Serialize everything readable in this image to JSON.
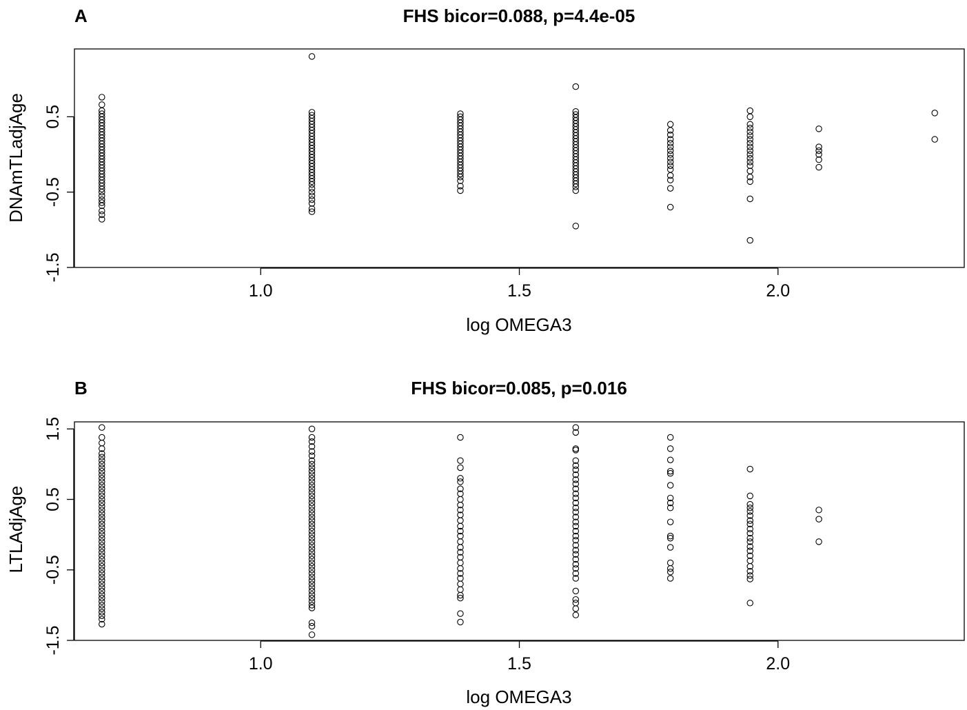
{
  "chart_data": [
    {
      "type": "scatter",
      "panel_label": "A",
      "title": "FHS bicor=0.088, p=4.4e-05",
      "xlabel": "log OMEGA3",
      "ylabel": "DNAmTLadjAge",
      "xlim": [
        0.64,
        2.36
      ],
      "ylim": [
        -1.5,
        1.4
      ],
      "xticks": [
        "1.0",
        "1.5",
        "2.0"
      ],
      "yticks": [
        "-1.5",
        "-0.5",
        "0.5"
      ],
      "ytick_values": [
        -1.5,
        -0.5,
        0.5
      ],
      "xtick_values": [
        1.0,
        1.5,
        2.0
      ],
      "grid": false,
      "legend": "none",
      "groups": [
        {
          "x": 0.693,
          "values": [
            0.76,
            0.66,
            0.58,
            0.54,
            0.5,
            0.46,
            0.42,
            0.38,
            0.34,
            0.3,
            0.26,
            0.22,
            0.18,
            0.14,
            0.1,
            0.06,
            0.02,
            -0.02,
            -0.06,
            -0.1,
            -0.14,
            -0.18,
            -0.22,
            -0.26,
            -0.3,
            -0.34,
            -0.38,
            -0.42,
            -0.46,
            -0.5,
            -0.55,
            -0.6,
            -0.64,
            -0.68,
            -0.75,
            -0.8,
            -0.86
          ]
        },
        {
          "x": 1.099,
          "values": [
            1.3,
            0.56,
            0.52,
            0.48,
            0.44,
            0.4,
            0.36,
            0.32,
            0.28,
            0.24,
            0.2,
            0.16,
            0.12,
            0.08,
            0.04,
            0.0,
            -0.04,
            -0.08,
            -0.12,
            -0.16,
            -0.2,
            -0.24,
            -0.28,
            -0.32,
            -0.36,
            -0.4,
            -0.45,
            -0.5,
            -0.55,
            -0.6,
            -0.65,
            -0.72,
            -0.76
          ]
        },
        {
          "x": 1.386,
          "values": [
            0.54,
            0.5,
            0.46,
            0.42,
            0.38,
            0.34,
            0.3,
            0.26,
            0.22,
            0.18,
            0.14,
            0.1,
            0.06,
            0.02,
            -0.02,
            -0.06,
            -0.1,
            -0.14,
            -0.18,
            -0.22,
            -0.26,
            -0.3,
            -0.35,
            -0.42,
            -0.48
          ]
        },
        {
          "x": 1.609,
          "values": [
            0.9,
            0.57,
            0.53,
            0.49,
            0.45,
            0.41,
            0.37,
            0.33,
            0.29,
            0.25,
            0.21,
            0.17,
            0.13,
            0.09,
            0.05,
            0.01,
            -0.03,
            -0.07,
            -0.11,
            -0.15,
            -0.19,
            -0.23,
            -0.27,
            -0.31,
            -0.35,
            -0.39,
            -0.43,
            -0.48,
            -0.95
          ]
        },
        {
          "x": 1.792,
          "values": [
            0.4,
            0.32,
            0.26,
            0.2,
            0.15,
            0.1,
            0.05,
            0.0,
            -0.05,
            -0.1,
            -0.15,
            -0.2,
            -0.28,
            -0.34,
            -0.45,
            -0.7
          ]
        },
        {
          "x": 1.946,
          "values": [
            0.58,
            0.5,
            0.4,
            0.35,
            0.3,
            0.25,
            0.2,
            0.15,
            0.1,
            0.05,
            0.0,
            -0.05,
            -0.1,
            -0.15,
            -0.22,
            -0.3,
            -0.36,
            -0.59,
            -1.14
          ]
        },
        {
          "x": 2.079,
          "values": [
            0.34,
            0.1,
            0.05,
            0.0,
            -0.07,
            -0.17
          ]
        },
        {
          "x": 2.303,
          "values": [
            0.55,
            0.2
          ]
        }
      ]
    },
    {
      "type": "scatter",
      "panel_label": "B",
      "title": "FHS bicor=0.085, p=0.016",
      "xlabel": "log OMEGA3",
      "ylabel": "LTLAdjAge",
      "xlim": [
        0.64,
        2.36
      ],
      "ylim": [
        -1.5,
        1.6
      ],
      "xticks": [
        "1.0",
        "1.5",
        "2.0"
      ],
      "yticks": [
        "-1.5",
        "-0.5",
        "0.5",
        "1.5"
      ],
      "ytick_values": [
        -1.5,
        -0.5,
        0.5,
        1.5
      ],
      "xtick_values": [
        1.0,
        1.5,
        2.0
      ],
      "grid": false,
      "legend": "none",
      "groups": [
        {
          "x": 0.693,
          "values": [
            1.52,
            1.38,
            1.3,
            1.22,
            1.15,
            1.1,
            1.05,
            1.0,
            0.95,
            0.9,
            0.85,
            0.8,
            0.75,
            0.7,
            0.65,
            0.6,
            0.55,
            0.5,
            0.45,
            0.4,
            0.35,
            0.3,
            0.25,
            0.2,
            0.15,
            0.1,
            0.05,
            0.0,
            -0.05,
            -0.1,
            -0.15,
            -0.2,
            -0.25,
            -0.3,
            -0.35,
            -0.4,
            -0.45,
            -0.5,
            -0.55,
            -0.6,
            -0.65,
            -0.7,
            -0.75,
            -0.8,
            -0.85,
            -0.9,
            -0.95,
            -1.0,
            -1.05,
            -1.1,
            -1.15,
            -1.2,
            -1.27
          ]
        },
        {
          "x": 1.099,
          "values": [
            1.5,
            1.38,
            1.32,
            1.25,
            1.18,
            1.12,
            1.05,
            1.0,
            0.95,
            0.9,
            0.85,
            0.8,
            0.75,
            0.7,
            0.65,
            0.6,
            0.55,
            0.5,
            0.45,
            0.4,
            0.35,
            0.3,
            0.25,
            0.2,
            0.15,
            0.1,
            0.05,
            0.0,
            -0.05,
            -0.1,
            -0.15,
            -0.2,
            -0.25,
            -0.3,
            -0.35,
            -0.4,
            -0.45,
            -0.5,
            -0.55,
            -0.6,
            -0.65,
            -0.7,
            -0.75,
            -0.8,
            -0.85,
            -0.9,
            -0.95,
            -1.0,
            -1.04,
            -1.25,
            -1.3,
            -1.42
          ]
        },
        {
          "x": 1.386,
          "values": [
            1.38,
            1.05,
            0.95,
            0.8,
            0.75,
            0.65,
            0.58,
            0.5,
            0.42,
            0.35,
            0.28,
            0.2,
            0.12,
            0.05,
            -0.02,
            -0.1,
            -0.18,
            -0.25,
            -0.32,
            -0.4,
            -0.48,
            -0.55,
            -0.62,
            -0.7,
            -0.78,
            -0.86,
            -0.9,
            -1.12,
            -1.24
          ]
        },
        {
          "x": 1.609,
          "values": [
            1.52,
            1.45,
            1.22,
            1.2,
            1.05,
            0.98,
            0.92,
            0.85,
            0.78,
            0.72,
            0.65,
            0.58,
            0.52,
            0.45,
            0.38,
            0.32,
            0.25,
            0.18,
            0.12,
            0.05,
            -0.02,
            -0.08,
            -0.15,
            -0.22,
            -0.28,
            -0.35,
            -0.42,
            -0.48,
            -0.55,
            -0.62,
            -0.8,
            -0.92,
            -0.97,
            -1.05,
            -1.14
          ]
        },
        {
          "x": 1.792,
          "values": [
            1.38,
            1.22,
            1.06,
            0.9,
            0.87,
            0.7,
            0.52,
            0.45,
            0.38,
            0.18,
            -0.02,
            -0.05,
            -0.18,
            -0.4,
            -0.48,
            -0.53,
            -0.62
          ]
        },
        {
          "x": 1.946,
          "values": [
            0.93,
            0.55,
            0.43,
            0.38,
            0.33,
            0.27,
            0.2,
            0.15,
            0.08,
            0.02,
            -0.05,
            -0.1,
            -0.17,
            -0.23,
            -0.3,
            -0.37,
            -0.45,
            -0.52,
            -0.58,
            -0.63,
            -0.97
          ]
        },
        {
          "x": 2.079,
          "values": [
            0.35,
            0.22,
            -0.1
          ]
        }
      ]
    }
  ]
}
